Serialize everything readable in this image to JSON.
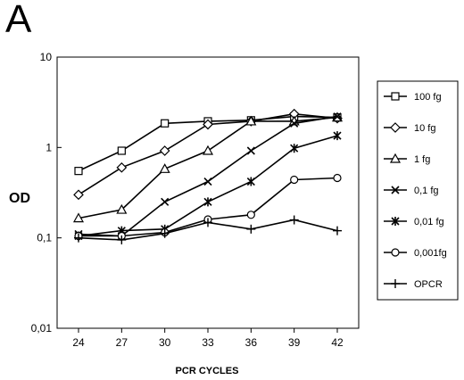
{
  "panel_label": "A",
  "chart_data": {
    "type": "line",
    "title": "",
    "xlabel": "PCR CYCLES",
    "ylabel": "OD",
    "x": [
      24,
      27,
      30,
      33,
      36,
      39,
      42
    ],
    "x_tick_labels": [
      "24",
      "27",
      "30",
      "33",
      "36",
      "39",
      "42"
    ],
    "y_scale": "log",
    "ylim": [
      0.01,
      10
    ],
    "y_ticks": [
      0.01,
      0.1,
      1,
      10
    ],
    "y_tick_labels": [
      "0,01",
      "0,1",
      "1",
      "10"
    ],
    "grid": false,
    "legend_position": "right",
    "series": [
      {
        "name": "100 fg",
        "marker": "square",
        "values": [
          0.55,
          0.92,
          1.85,
          1.95,
          2.0,
          2.2,
          2.15
        ]
      },
      {
        "name": "10 fg",
        "marker": "diamond",
        "values": [
          0.3,
          0.6,
          0.92,
          1.8,
          1.95,
          2.35,
          2.1
        ]
      },
      {
        "name": "1 fg",
        "marker": "triangle",
        "values": [
          0.165,
          0.205,
          0.58,
          0.92,
          1.95,
          1.95,
          2.15
        ]
      },
      {
        "name": "0,1 fg",
        "marker": "x",
        "values": [
          0.11,
          0.105,
          0.25,
          0.42,
          0.92,
          1.85,
          2.2
        ]
      },
      {
        "name": "0,01 fg",
        "marker": "asterisk",
        "values": [
          0.105,
          0.12,
          0.125,
          0.25,
          0.42,
          0.98,
          1.35
        ]
      },
      {
        "name": "0,001fg",
        "marker": "circle",
        "values": [
          0.105,
          0.105,
          0.115,
          0.16,
          0.18,
          0.44,
          0.46
        ]
      },
      {
        "name": "OPCR",
        "marker": "plus",
        "values": [
          0.1,
          0.095,
          0.112,
          0.148,
          0.125,
          0.158,
          0.12
        ]
      }
    ]
  }
}
